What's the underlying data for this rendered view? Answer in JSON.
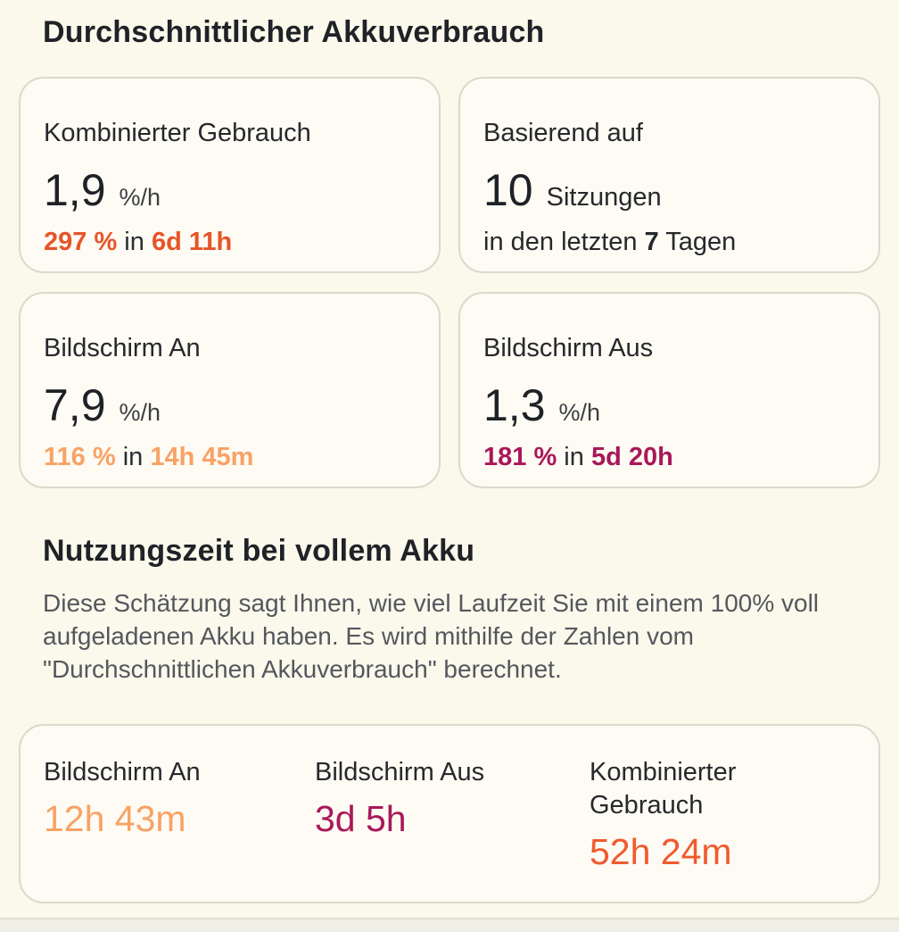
{
  "colors": {
    "accent_combined": "#E75429",
    "accent_combined_bright": "#F05A2E",
    "accent_screen_on": "#F8A266",
    "accent_screen_off": "#A9185A",
    "text_dark": "#212428",
    "text_gray": "#54585D",
    "background": "#FBF8EC",
    "card_background": "#FDFBF3",
    "card_border": "#DBD9CB",
    "footer_band": "#EFEFE6"
  },
  "usage": {
    "title": "Durchschnittlicher Akkuverbrauch",
    "cards": {
      "combined": {
        "label": "Kombinierter Gebrauch",
        "value": "1,9",
        "unit": "%/h",
        "amount": "297 %",
        "connector": "in",
        "time": "6d 11h"
      },
      "sessions": {
        "label": "Basierend auf",
        "value": "10",
        "suffix": "Sitzungen",
        "line2_pre": "in den letzten",
        "line2_num": "7",
        "line2_post": "Tagen"
      },
      "screen_on": {
        "label": "Bildschirm An",
        "value": "7,9",
        "unit": "%/h",
        "amount": "116 %",
        "connector": "in",
        "time": "14h 45m"
      },
      "screen_off": {
        "label": "Bildschirm Aus",
        "value": "1,3",
        "unit": "%/h",
        "amount": "181 %",
        "connector": "in",
        "time": "5d 20h"
      }
    }
  },
  "estimate": {
    "title": "Nutzungszeit bei vollem Akku",
    "description": "Diese Schätzung sagt Ihnen, wie viel Laufzeit Sie mit einem 100% voll aufgeladenen Akku haben. Es wird mithilfe der Zahlen vom \"Durchschnittlichen Akkuverbrauch\" berechnet.",
    "stats": [
      {
        "label": "Bildschirm An",
        "value": "12h 43m"
      },
      {
        "label": "Bildschirm Aus",
        "value": "3d 5h"
      },
      {
        "label": "Kombinierter Gebrauch",
        "value": "52h 24m"
      }
    ]
  }
}
